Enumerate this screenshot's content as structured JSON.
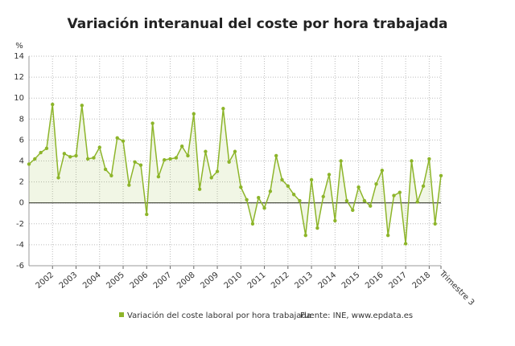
{
  "chart_data": {
    "type": "line",
    "title": "Variación interanual del coste por hora trabajada",
    "y_label": "%",
    "categories": [
      null,
      null,
      null,
      null,
      "2002",
      null,
      null,
      null,
      "2003",
      null,
      null,
      null,
      "2004",
      null,
      null,
      null,
      "2005",
      null,
      null,
      null,
      "2006",
      null,
      null,
      null,
      "2007",
      null,
      null,
      null,
      "2008",
      null,
      null,
      null,
      "2009",
      null,
      null,
      null,
      "2010",
      null,
      null,
      null,
      "2011",
      null,
      null,
      null,
      "2012",
      null,
      null,
      null,
      "2013",
      null,
      null,
      null,
      "2014",
      null,
      null,
      null,
      "2015",
      null,
      null,
      null,
      "2016",
      null,
      null,
      null,
      "2017",
      null,
      null,
      null,
      "2018",
      null,
      "Trimestre 3"
    ],
    "series": [
      {
        "name": "Variación del coste laboral por hora trabajada",
        "color": "#8db52a",
        "values": [
          3.7,
          4.2,
          4.8,
          5.2,
          9.4,
          2.4,
          4.7,
          4.4,
          4.5,
          9.3,
          4.2,
          4.3,
          5.3,
          3.2,
          2.6,
          6.2,
          5.9,
          1.7,
          3.9,
          3.6,
          -1.1,
          7.6,
          2.5,
          4.1,
          4.2,
          4.3,
          5.4,
          4.5,
          8.5,
          1.3,
          4.9,
          2.4,
          3.0,
          9.0,
          3.9,
          4.9,
          1.5,
          0.3,
          -2.0,
          0.5,
          -0.5,
          1.1,
          4.5,
          2.2,
          1.6,
          0.8,
          0.2,
          -3.1,
          2.2,
          -2.4,
          0.6,
          2.7,
          -1.7,
          4.0,
          0.2,
          -0.7,
          1.5,
          0.2,
          -0.3,
          1.8,
          3.1,
          -3.1,
          0.7,
          1.0,
          -3.9,
          4.0,
          0.1,
          1.6,
          4.2,
          -2.0,
          2.6
        ]
      }
    ],
    "source": "Fuente: INE, www.epdata.es",
    "ylim": [
      -6,
      14
    ],
    "yticks": [
      -6,
      -4,
      -2,
      0,
      2,
      4,
      6,
      8,
      10,
      12,
      14
    ],
    "grid": true
  }
}
